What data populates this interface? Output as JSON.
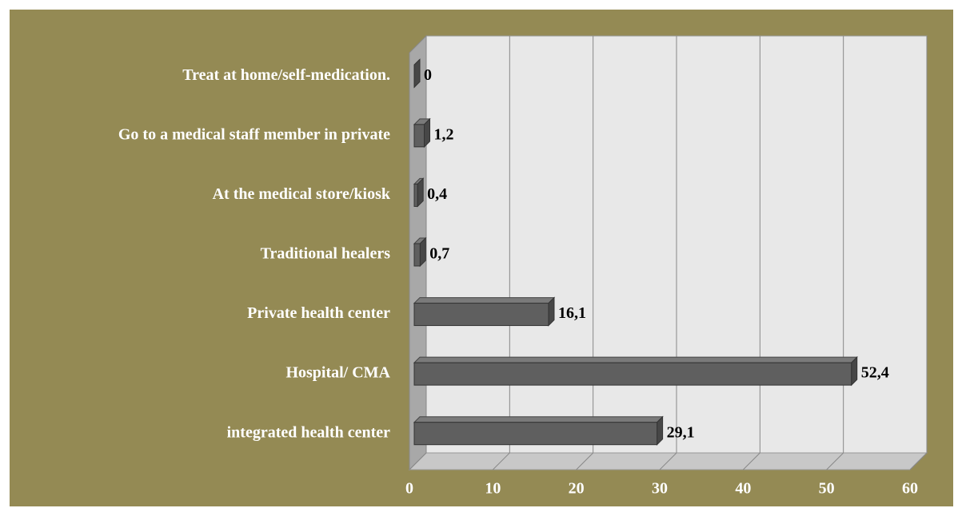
{
  "chart_data": {
    "type": "bar",
    "orientation": "horizontal",
    "categories": [
      "Treat at home/self-medication.",
      "Go to a medical staff member in private",
      "At the medical store/kiosk",
      "Traditional healers",
      "Private health center",
      "Hospital/ CMA",
      "integrated health center"
    ],
    "values": [
      0,
      1.2,
      0.4,
      0.7,
      16.1,
      52.4,
      29.1
    ],
    "value_labels": [
      "0",
      "1,2",
      "0,4",
      "0,7",
      "16,1",
      "52,4",
      "29,1"
    ],
    "color": "#5f5f5f",
    "xlim": [
      0,
      60
    ],
    "xticks": [
      0,
      10,
      20,
      30,
      40,
      50,
      60
    ],
    "grid": true
  }
}
